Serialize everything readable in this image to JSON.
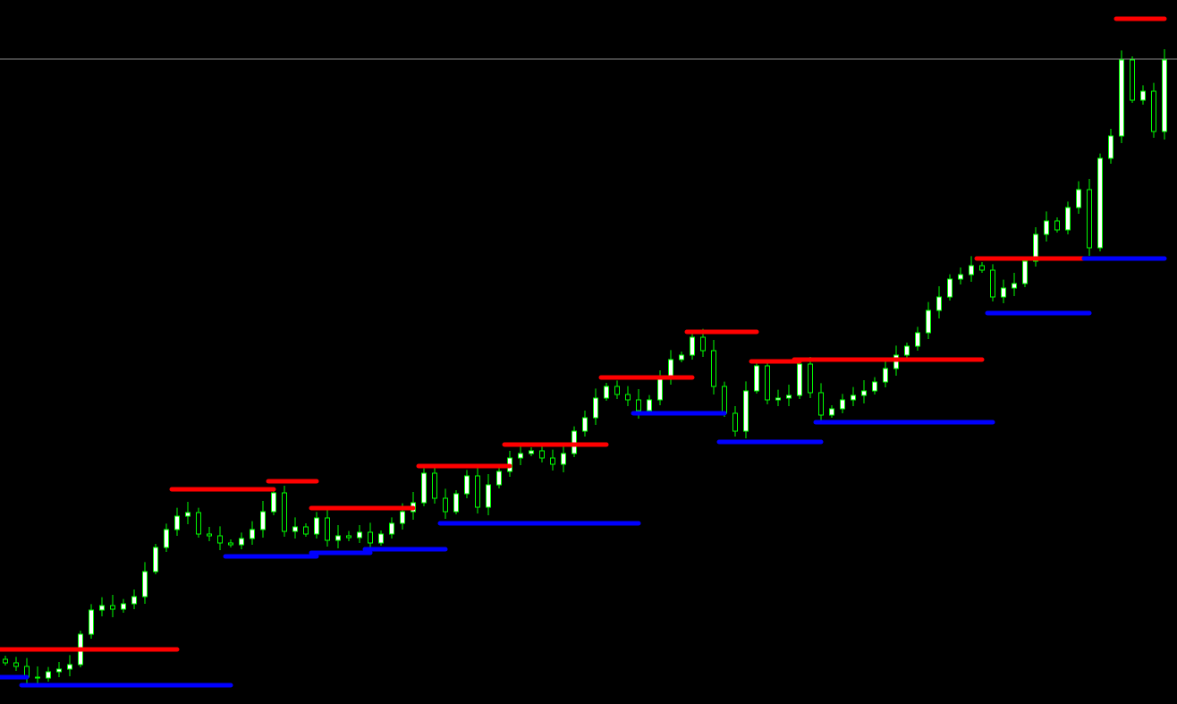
{
  "chart_data": {
    "type": "candlestick",
    "title": "",
    "xlabel": "",
    "ylabel": "",
    "ylim": [
      0,
      78.7
    ],
    "grid": false,
    "colors": {
      "background": "#000000",
      "candle_outline": "#00ff00",
      "bull_body": "#ffffff",
      "bear_body": "#000000",
      "resistance": "#ff0000",
      "support": "#0000ff",
      "price_line": "#c0c0c0"
    },
    "close": [
      4.6,
      4.2,
      3.0,
      2.9,
      3.6,
      3.9,
      4.4,
      7.8,
      10.5,
      11.0,
      10.6,
      11.2,
      12.0,
      14.8,
      17.5,
      19.5,
      21.0,
      21.4,
      19.0,
      18.8,
      18.0,
      17.8,
      18.5,
      19.5,
      21.5,
      23.6,
      19.3,
      19.8,
      19.0,
      20.8,
      18.3,
      18.8,
      18.6,
      19.2,
      18.0,
      19.0,
      20.2,
      21.5,
      22.5,
      25.8,
      23.0,
      21.5,
      23.5,
      25.5,
      22.0,
      24.5,
      26.0,
      27.5,
      28.0,
      28.3,
      27.5,
      26.8,
      28.0,
      30.5,
      32.0,
      34.2,
      35.5,
      34.6,
      34.0,
      32.8,
      34.0,
      36.5,
      38.5,
      39.0,
      41.0,
      39.5,
      35.5,
      32.5,
      30.5,
      35.0,
      37.8,
      34.0,
      34.2,
      34.5,
      38.0,
      34.8,
      32.3,
      33.0,
      34.0,
      34.5,
      35.0,
      36.0,
      37.5,
      39.0,
      40.0,
      41.5,
      44.0,
      45.5,
      47.5,
      48.0,
      49.0,
      48.5,
      45.5,
      46.5,
      47.0,
      49.5,
      52.5,
      54.0,
      53.0,
      55.5,
      57.5,
      51.0,
      61.0,
      63.5,
      72.0,
      67.5,
      68.5,
      64.0,
      72.0
    ],
    "resistance_levels": [
      {
        "from": 0,
        "to": 16,
        "price": 6.1
      },
      {
        "from": 16,
        "to": 25,
        "price": 24.0
      },
      {
        "from": 25,
        "to": 29,
        "price": 24.9
      },
      {
        "from": 29,
        "to": 38,
        "price": 21.9
      },
      {
        "from": 39,
        "to": 47,
        "price": 26.6
      },
      {
        "from": 47,
        "to": 56,
        "price": 29.0
      },
      {
        "from": 56,
        "to": 64,
        "price": 36.5
      },
      {
        "from": 64,
        "to": 70,
        "price": 41.6
      },
      {
        "from": 70,
        "to": 74,
        "price": 38.3
      },
      {
        "from": 74,
        "to": 91,
        "price": 38.5
      },
      {
        "from": 91,
        "to": 101,
        "price": 49.8
      },
      {
        "from": 104,
        "to": 108,
        "price": 76.6
      }
    ],
    "support_levels": [
      {
        "from": 0,
        "to": 2,
        "price": 3.0
      },
      {
        "from": 2,
        "to": 21,
        "price": 2.1
      },
      {
        "from": 21,
        "to": 29,
        "price": 16.5
      },
      {
        "from": 29,
        "to": 34,
        "price": 16.9
      },
      {
        "from": 34,
        "to": 41,
        "price": 17.3
      },
      {
        "from": 41,
        "to": 59,
        "price": 20.2
      },
      {
        "from": 59,
        "to": 67,
        "price": 32.5
      },
      {
        "from": 67,
        "to": 76,
        "price": 29.3
      },
      {
        "from": 76,
        "to": 92,
        "price": 31.5
      },
      {
        "from": 92,
        "to": 101,
        "price": 43.7
      },
      {
        "from": 101,
        "to": 108,
        "price": 49.8
      }
    ],
    "current_price_line": 72.1
  }
}
